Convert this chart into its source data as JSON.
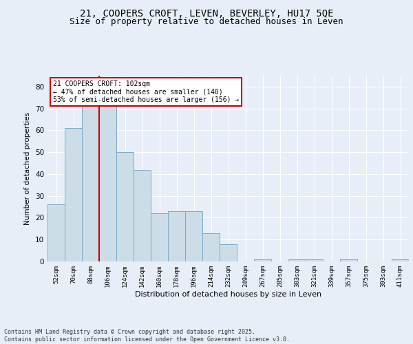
{
  "title_line1": "21, COOPERS CROFT, LEVEN, BEVERLEY, HU17 5QE",
  "title_line2": "Size of property relative to detached houses in Leven",
  "xlabel": "Distribution of detached houses by size in Leven",
  "ylabel": "Number of detached properties",
  "categories": [
    "52sqm",
    "70sqm",
    "88sqm",
    "106sqm",
    "124sqm",
    "142sqm",
    "160sqm",
    "178sqm",
    "196sqm",
    "214sqm",
    "232sqm",
    "249sqm",
    "267sqm",
    "285sqm",
    "303sqm",
    "321sqm",
    "339sqm",
    "357sqm",
    "375sqm",
    "393sqm",
    "411sqm"
  ],
  "values": [
    26,
    61,
    75,
    75,
    50,
    42,
    22,
    23,
    23,
    13,
    8,
    0,
    1,
    0,
    1,
    1,
    0,
    1,
    0,
    0,
    1
  ],
  "bar_color": "#ccdde8",
  "bar_edge_color": "#7aaac8",
  "red_line_index": 3,
  "red_line_color": "#cc0000",
  "annotation_text": "21 COOPERS CROFT: 102sqm\n← 47% of detached houses are smaller (140)\n53% of semi-detached houses are larger (156) →",
  "annotation_box_color": "#cc0000",
  "ylim": [
    0,
    85
  ],
  "yticks": [
    0,
    10,
    20,
    30,
    40,
    50,
    60,
    70,
    80
  ],
  "bg_color": "#e8eef8",
  "plot_bg_color": "#e8eef8",
  "footer": "Contains HM Land Registry data © Crown copyright and database right 2025.\nContains public sector information licensed under the Open Government Licence v3.0.",
  "title_fontsize": 10,
  "subtitle_fontsize": 9,
  "grid_color": "#ffffff"
}
